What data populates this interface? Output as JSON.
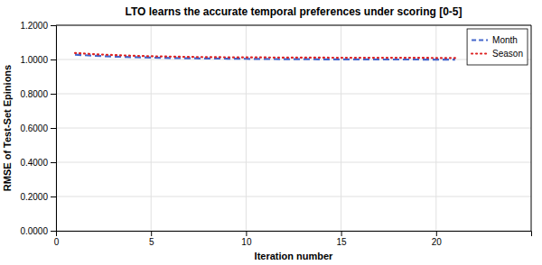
{
  "chart_data": {
    "type": "line",
    "title": "LTO learns the accurate temporal preferences under scoring [0-5]",
    "xlabel": "Iteration number",
    "ylabel": "RMSE of Test-Set Epinions",
    "x": [
      1,
      2,
      3,
      4,
      5,
      6,
      7,
      8,
      9,
      10,
      11,
      12,
      13,
      14,
      15,
      16,
      17,
      18,
      19,
      20,
      21
    ],
    "series": [
      {
        "name": "Month",
        "color": "#4466cc",
        "line_style": "dashed",
        "values": [
          1.028,
          1.022,
          1.017,
          1.014,
          1.011,
          1.009,
          1.007,
          1.006,
          1.005,
          1.004,
          1.003,
          1.002,
          1.002,
          1.001,
          1.001,
          1.001,
          1.0,
          1.0,
          1.0,
          0.999,
          0.999
        ]
      },
      {
        "name": "Season",
        "color": "#dd2222",
        "line_style": "dotted",
        "values": [
          1.038,
          1.031,
          1.026,
          1.022,
          1.019,
          1.017,
          1.015,
          1.014,
          1.013,
          1.012,
          1.012,
          1.011,
          1.011,
          1.011,
          1.01,
          1.01,
          1.01,
          1.01,
          1.01,
          1.009,
          1.009
        ]
      }
    ],
    "xlim": [
      0,
      25
    ],
    "ylim": [
      0.0,
      1.2
    ],
    "xticks": [
      0,
      5,
      10,
      15,
      20
    ],
    "yticks": [
      {
        "value": 0.0,
        "label": "0.0000"
      },
      {
        "value": 0.2,
        "label": "0.2000"
      },
      {
        "value": 0.4,
        "label": "0.4000"
      },
      {
        "value": 0.6,
        "label": "0.6000"
      },
      {
        "value": 0.8,
        "label": "0.8000"
      },
      {
        "value": 1.0,
        "label": "1.0000"
      },
      {
        "value": 1.2,
        "label": "1.2000"
      }
    ],
    "grid": true,
    "legend": "upper right"
  }
}
